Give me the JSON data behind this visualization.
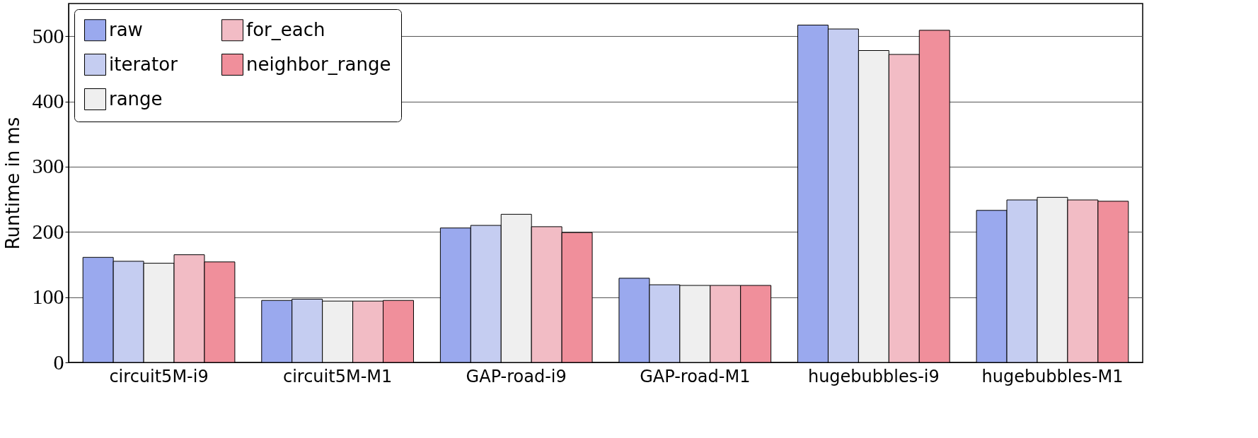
{
  "chart_data": {
    "type": "bar",
    "ylabel": "Runtime in ms",
    "categories": [
      "circuit5M-i9",
      "circuit5M-M1",
      "GAP-road-i9",
      "GAP-road-M1",
      "hugebubbles-i9",
      "hugebubbles-M1"
    ],
    "series": [
      {
        "name": "raw",
        "color": "#9aa9ee",
        "values": [
          161,
          95,
          206,
          129,
          517,
          233
        ]
      },
      {
        "name": "iterator",
        "color": "#c5cdf1",
        "values": [
          155,
          97,
          210,
          119,
          511,
          249
        ]
      },
      {
        "name": "range",
        "color": "#efefef",
        "values": [
          152,
          94,
          227,
          118,
          478,
          253
        ]
      },
      {
        "name": "for_each",
        "color": "#f2bcc5",
        "values": [
          165,
          94,
          208,
          118,
          472,
          249
        ]
      },
      {
        "name": "neighbor_range",
        "color": "#f08f9b",
        "values": [
          154,
          95,
          199,
          118,
          509,
          247
        ]
      }
    ],
    "ylim": [
      0,
      550
    ],
    "yticks": [
      0,
      100,
      200,
      300,
      400,
      500
    ],
    "grid": "y",
    "legend": "top left"
  }
}
